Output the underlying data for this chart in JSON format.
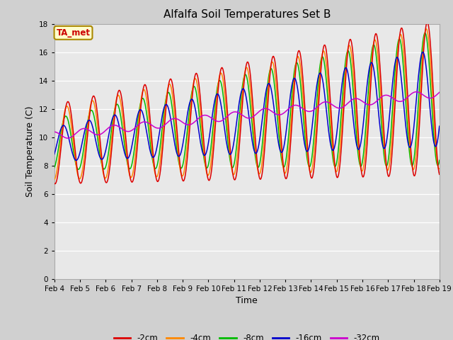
{
  "title": "Alfalfa Soil Temperatures Set B",
  "xlabel": "Time",
  "ylabel": "Soil Temperature (C)",
  "ylim": [
    0,
    18
  ],
  "yticks": [
    0,
    2,
    4,
    6,
    8,
    10,
    12,
    14,
    16,
    18
  ],
  "legend_labels": [
    "-2cm",
    "-4cm",
    "-8cm",
    "-16cm",
    "-32cm"
  ],
  "legend_colors": [
    "#dd0000",
    "#ff8800",
    "#00bb00",
    "#0000cc",
    "#cc00cc"
  ],
  "ta_met_label": "TA_met",
  "ta_met_color": "#cc0000",
  "ta_met_bg": "#ffffcc",
  "ta_met_edge": "#aa8800",
  "x_tick_labels": [
    "Feb 4",
    "Feb 5",
    "Feb 6",
    "Feb 7",
    "Feb 8",
    "Feb 9",
    "Feb 10",
    "Feb 11",
    "Feb 12",
    "Feb 13",
    "Feb 14",
    "Feb 15",
    "Feb 16",
    "Feb 17",
    "Feb 18",
    "Feb 19"
  ],
  "fig_bg": "#d0d0d0",
  "ax_bg": "#e8e8e8",
  "grid_color": "#ffffff",
  "title_fontsize": 11,
  "label_fontsize": 9,
  "tick_fontsize": 7.5
}
